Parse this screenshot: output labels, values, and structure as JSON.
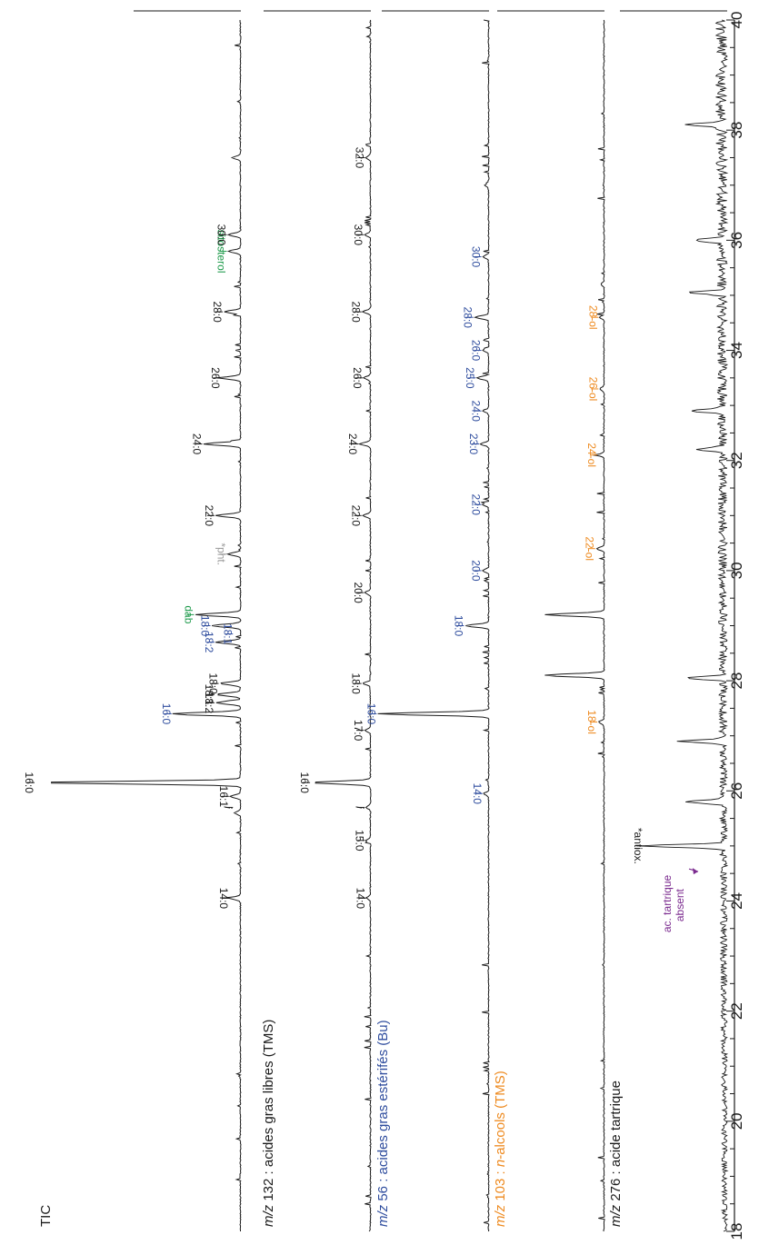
{
  "chart_data": {
    "type": "line",
    "orientation": "rotated-90-clockwise",
    "x_axis": {
      "label": "",
      "range": [
        18,
        40
      ],
      "ticks": [
        18,
        20,
        22,
        24,
        26,
        28,
        30,
        32,
        34,
        36,
        38,
        40
      ]
    },
    "panels": [
      {
        "id": "tic",
        "prefix": "",
        "prefix_italic": "",
        "title": "TIC",
        "title_italic_part": "",
        "title_suffix": "",
        "color": "#1a1a1a",
        "noise": "low",
        "peaks": [
          {
            "x": 24.05,
            "h": 0.05
          },
          {
            "x": 25.6,
            "h": 0.03
          },
          {
            "x": 25.9,
            "h": 0.05
          },
          {
            "x": 26.15,
            "h": 1.0
          },
          {
            "x": 27.4,
            "h": 0.33
          },
          {
            "x": 27.6,
            "h": 0.12
          },
          {
            "x": 27.75,
            "h": 0.12
          },
          {
            "x": 27.95,
            "h": 0.1
          },
          {
            "x": 28.7,
            "h": 0.12
          },
          {
            "x": 29.0,
            "h": 0.14
          },
          {
            "x": 29.2,
            "h": 0.22
          },
          {
            "x": 30.3,
            "h": 0.06
          },
          {
            "x": 31.0,
            "h": 0.12
          },
          {
            "x": 32.3,
            "h": 0.18
          },
          {
            "x": 33.5,
            "h": 0.09
          },
          {
            "x": 34.7,
            "h": 0.08
          },
          {
            "x": 35.8,
            "h": 0.06
          },
          {
            "x": 36.1,
            "h": 0.06
          },
          {
            "x": 37.5,
            "h": 0.04
          }
        ],
        "labels": [
          {
            "text": "14:0",
            "x": 24.05,
            "color": "#1a1a1a"
          },
          {
            "text": "i",
            "x": 25.7,
            "color": "#1a1a1a",
            "italic": true
          },
          {
            "text": "16:1",
            "x": 25.9,
            "color": "#1a1a1a"
          },
          {
            "text": "16:0",
            "x": 26.15,
            "color": "#1a1a1a"
          },
          {
            "text": "16:0",
            "x": 27.4,
            "color": "#2f4d9e"
          },
          {
            "text": "18:2",
            "x": 27.6,
            "color": "#1a1a1a"
          },
          {
            "text": "18:1",
            "x": 27.75,
            "color": "#1a1a1a"
          },
          {
            "text": "18:0",
            "x": 27.95,
            "color": "#1a1a1a"
          },
          {
            "text": "18:2",
            "x": 28.7,
            "color": "#2f4d9e"
          },
          {
            "text": "18:1",
            "x": 28.85,
            "color": "#2f4d9e"
          },
          {
            "text": "18:0",
            "x": 29.0,
            "color": "#2f4d9e"
          },
          {
            "text": "dab",
            "x": 29.2,
            "color": "#1e9a4b"
          },
          {
            "text": "*pht.",
            "x": 30.3,
            "color": "#9a9a9a"
          },
          {
            "text": "22:0",
            "x": 31.0,
            "color": "#1a1a1a"
          },
          {
            "text": "24:0",
            "x": 32.3,
            "color": "#1a1a1a"
          },
          {
            "text": "26:0",
            "x": 33.5,
            "color": "#1a1a1a"
          },
          {
            "text": "28:0",
            "x": 34.7,
            "color": "#1a1a1a"
          },
          {
            "text": "sitosterol",
            "x": 35.8,
            "color": "#1e9a4b"
          },
          {
            "text": "30:0",
            "x": 36.1,
            "color": "#1a1a1a"
          }
        ]
      },
      {
        "id": "mz132",
        "prefix": "m/z",
        "prefix_italic": "true",
        "title": " 132 : acides gras libres (TMS)",
        "title_italic_part": "",
        "title_suffix": "",
        "color": "#1a1a1a",
        "noise": "low",
        "peaks": [
          {
            "x": 24.05,
            "h": 0.03
          },
          {
            "x": 25.1,
            "h": 0.04
          },
          {
            "x": 25.7,
            "h": 0.04
          },
          {
            "x": 26.15,
            "h": 0.55
          },
          {
            "x": 27.1,
            "h": 0.05
          },
          {
            "x": 27.95,
            "h": 0.07
          },
          {
            "x": 29.6,
            "h": 0.05
          },
          {
            "x": 31.0,
            "h": 0.07
          },
          {
            "x": 32.3,
            "h": 0.1
          },
          {
            "x": 33.5,
            "h": 0.06
          },
          {
            "x": 34.7,
            "h": 0.07
          },
          {
            "x": 36.1,
            "h": 0.05
          },
          {
            "x": 37.5,
            "h": 0.04
          }
        ],
        "labels": [
          {
            "text": "14:0",
            "x": 24.05,
            "color": "#1a1a1a"
          },
          {
            "text": "15:0",
            "x": 25.1,
            "color": "#1a1a1a"
          },
          {
            "text": "i",
            "x": 25.7,
            "color": "#1a1a1a",
            "italic": true
          },
          {
            "text": "16:0",
            "x": 26.15,
            "color": "#1a1a1a"
          },
          {
            "text": "17:0",
            "x": 27.1,
            "color": "#1a1a1a"
          },
          {
            "text": "18:0",
            "x": 27.95,
            "color": "#1a1a1a"
          },
          {
            "text": "20:0",
            "x": 29.6,
            "color": "#1a1a1a"
          },
          {
            "text": "22:0",
            "x": 31.0,
            "color": "#1a1a1a"
          },
          {
            "text": "24:0",
            "x": 32.3,
            "color": "#1a1a1a"
          },
          {
            "text": "26:0",
            "x": 33.5,
            "color": "#1a1a1a"
          },
          {
            "text": "28:0",
            "x": 34.7,
            "color": "#1a1a1a"
          },
          {
            "text": "30:0",
            "x": 36.1,
            "color": "#1a1a1a"
          },
          {
            "text": "32:0",
            "x": 37.5,
            "color": "#1a1a1a"
          }
        ]
      },
      {
        "id": "mz56",
        "prefix": "m/z",
        "prefix_italic": "true",
        "title": " 56 : acides gras estérifés (Bu)",
        "title_italic_part": "",
        "title_suffix": "",
        "color": "#2f4d9e",
        "noise": "low",
        "peaks": [
          {
            "x": 25.95,
            "h": 0.04
          },
          {
            "x": 27.4,
            "h": 0.95
          },
          {
            "x": 29.0,
            "h": 0.2
          },
          {
            "x": 30.0,
            "h": 0.05
          },
          {
            "x": 31.2,
            "h": 0.05
          },
          {
            "x": 32.3,
            "h": 0.07
          },
          {
            "x": 32.9,
            "h": 0.05
          },
          {
            "x": 33.5,
            "h": 0.1
          },
          {
            "x": 34.0,
            "h": 0.05
          },
          {
            "x": 34.6,
            "h": 0.12
          },
          {
            "x": 35.7,
            "h": 0.05
          },
          {
            "x": 37.0,
            "h": 0.03
          }
        ],
        "labels": [
          {
            "text": "14:0",
            "x": 25.95,
            "color": "#2f4d9e"
          },
          {
            "text": "16:0",
            "x": 27.4,
            "color": "#2f4d9e"
          },
          {
            "text": "18:0",
            "x": 29.0,
            "color": "#2f4d9e"
          },
          {
            "text": "20:0",
            "x": 30.0,
            "color": "#2f4d9e"
          },
          {
            "text": "22:0",
            "x": 31.2,
            "color": "#2f4d9e"
          },
          {
            "text": "23:0",
            "x": 32.3,
            "color": "#2f4d9e"
          },
          {
            "text": "24:0",
            "x": 32.9,
            "color": "#2f4d9e"
          },
          {
            "text": "25:0",
            "x": 33.5,
            "color": "#2f4d9e"
          },
          {
            "text": "26:0",
            "x": 34.0,
            "color": "#2f4d9e"
          },
          {
            "text": "28:0",
            "x": 34.6,
            "color": "#2f4d9e"
          },
          {
            "text": "30:0",
            "x": 35.7,
            "color": "#2f4d9e"
          }
        ]
      },
      {
        "id": "mz103",
        "prefix": "m/z",
        "prefix_italic": "true",
        "title": " 103 : ",
        "title_italic_part": "n",
        "title_suffix": "-alcools (TMS)",
        "color": "#ee8a1f",
        "noise": "low",
        "peaks": [
          {
            "x": 27.25,
            "h": 0.05
          },
          {
            "x": 28.1,
            "h": 0.55
          },
          {
            "x": 29.2,
            "h": 0.55
          },
          {
            "x": 30.4,
            "h": 0.07
          },
          {
            "x": 32.1,
            "h": 0.05
          },
          {
            "x": 33.3,
            "h": 0.04
          },
          {
            "x": 34.6,
            "h": 0.04
          },
          {
            "x": 35.2,
            "h": 0.03
          }
        ],
        "labels": [
          {
            "text": "18-ol",
            "x": 27.25,
            "color": "#ee8a1f"
          },
          {
            "text": "22-ol",
            "x": 30.4,
            "color": "#ee8a1f"
          },
          {
            "text": "24-ol",
            "x": 32.1,
            "color": "#ee8a1f"
          },
          {
            "text": "26-ol",
            "x": 33.3,
            "color": "#ee8a1f"
          },
          {
            "text": "28-ol",
            "x": 34.6,
            "color": "#ee8a1f"
          }
        ]
      },
      {
        "id": "mz276",
        "prefix": "m/z",
        "prefix_italic": "true",
        "title": " 276 : acide tartrique",
        "title_italic_part": "",
        "title_suffix": "",
        "color": "#1a1a1a",
        "noise": "high",
        "peaks": [
          {
            "x": 25.0,
            "h": 0.72
          },
          {
            "x": 25.8,
            "h": 0.35
          },
          {
            "x": 26.9,
            "h": 0.38
          },
          {
            "x": 28.05,
            "h": 0.35
          },
          {
            "x": 32.2,
            "h": 0.25
          },
          {
            "x": 32.9,
            "h": 0.3
          },
          {
            "x": 35.05,
            "h": 0.35
          },
          {
            "x": 36.0,
            "h": 0.25
          },
          {
            "x": 38.1,
            "h": 0.35
          }
        ],
        "labels": [
          {
            "text": "*antiox.",
            "x": 25.0,
            "color": "#1a1a1a"
          }
        ],
        "annotation": {
          "line1": "ac. tartrique",
          "line2": "absent",
          "x": 24.5,
          "color": "#7b2b8f"
        }
      }
    ]
  }
}
